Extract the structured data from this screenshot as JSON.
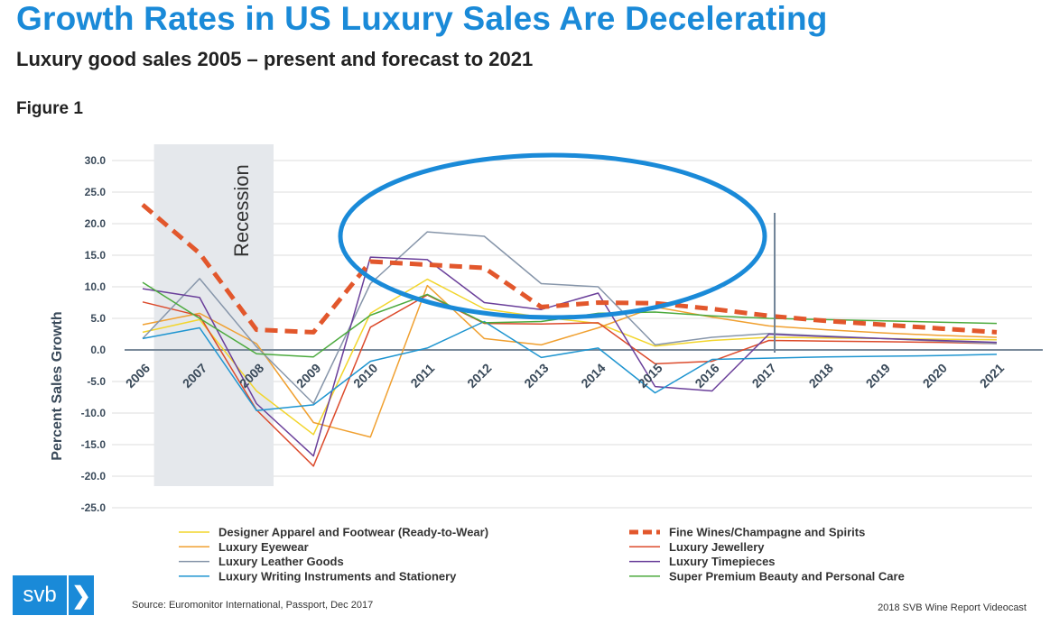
{
  "header": {
    "title": "Growth Rates in US Luxury Sales Are Decelerating",
    "subtitle": "Luxury good sales 2005 – present and forecast to 2021",
    "figure_label": "Figure 1"
  },
  "footer": {
    "logo_text": "svb",
    "logo_icon": "chevron-right-icon",
    "source": "Source: Euromonitor International, Passport, Dec 2017",
    "credit": "2018 SVB Wine Report Videocast"
  },
  "chart_data": {
    "type": "line",
    "title": "Growth Rates in US Luxury Sales Are Decelerating",
    "xlabel": "",
    "ylabel": "Percent Sales Growth",
    "ylim": [
      -25,
      30
    ],
    "yticks": [
      "30.0",
      "25.0",
      "20.0",
      "15.0",
      "10.0",
      "5.0",
      "0.0",
      "-5.0",
      "-10.0",
      "-15.0",
      "-20.0",
      "-25.0"
    ],
    "categories": [
      "2006",
      "2007",
      "2008",
      "2009",
      "2010",
      "2011",
      "2012",
      "2013",
      "2014",
      "2015",
      "2016",
      "2017",
      "2018",
      "2019",
      "2020",
      "2021"
    ],
    "recession": {
      "label": "Recession",
      "from": 2006.2,
      "to": 2008.3
    },
    "forecast_marker": 2017.1,
    "legend_position": "bottom",
    "colors": {
      "accent": "#1a8ad8",
      "grid": "#dcdcdc",
      "recession_shade": "#e5e8ec",
      "highlight_ellipse": "#1a8ad8"
    },
    "series": [
      {
        "name": "Designer Apparel and Footwear (Ready-to-Wear)",
        "color": "#f2d52c",
        "width": 1.5,
        "dash": false,
        "values": [
          2.8,
          4.8,
          -6.5,
          -13.4,
          5.8,
          11.2,
          6.5,
          5.2,
          4.2,
          0.6,
          1.5,
          2.0,
          1.9,
          1.8,
          1.7,
          1.6
        ]
      },
      {
        "name": "Fine Wines/Champagne and Spirits",
        "color": "#e2572c",
        "width": 5,
        "dash": true,
        "values": [
          23.0,
          15.3,
          3.2,
          2.8,
          14.0,
          13.5,
          13.0,
          6.8,
          7.5,
          7.4,
          6.5,
          5.4,
          4.6,
          4.0,
          3.4,
          2.8
        ]
      },
      {
        "name": "Luxury Eyewear",
        "color": "#f0a030",
        "width": 1.5,
        "dash": false,
        "values": [
          4.0,
          5.8,
          1.0,
          -11.5,
          -13.8,
          10.2,
          1.8,
          0.8,
          3.5,
          6.8,
          5.2,
          3.8,
          3.2,
          2.7,
          2.3,
          2.0
        ]
      },
      {
        "name": "Luxury Jewellery",
        "color": "#dc4b2c",
        "width": 1.5,
        "dash": false,
        "values": [
          7.6,
          5.4,
          -9.5,
          -18.4,
          3.6,
          8.7,
          4.2,
          4.1,
          4.3,
          -2.2,
          -1.8,
          1.5,
          1.4,
          1.3,
          1.2,
          1.0
        ]
      },
      {
        "name": "Luxury Leather Goods",
        "color": "#8796aa",
        "width": 1.5,
        "dash": false,
        "values": [
          1.8,
          11.3,
          0.5,
          -8.5,
          10.5,
          18.7,
          18.0,
          10.5,
          10.0,
          0.8,
          2.0,
          2.6,
          2.2,
          1.8,
          1.4,
          1.0
        ]
      },
      {
        "name": "Luxury Timepieces",
        "color": "#6a3f9a",
        "width": 1.5,
        "dash": false,
        "values": [
          9.7,
          8.3,
          -8.5,
          -16.8,
          14.7,
          14.3,
          7.5,
          6.4,
          9.0,
          -5.8,
          -6.5,
          2.5,
          2.1,
          1.8,
          1.5,
          1.2
        ]
      },
      {
        "name": "Luxury Writing Instruments and Stationery",
        "color": "#1f95d0",
        "width": 1.5,
        "dash": false,
        "values": [
          1.8,
          3.5,
          -9.6,
          -8.7,
          -1.8,
          0.3,
          4.5,
          -1.2,
          0.3,
          -6.8,
          -1.5,
          -1.3,
          -1.1,
          -1.0,
          -0.9,
          -0.7
        ]
      },
      {
        "name": "Super Premium Beauty and Personal Care",
        "color": "#4caa3e",
        "width": 1.5,
        "dash": false,
        "values": [
          10.7,
          5.0,
          -0.6,
          -1.1,
          5.5,
          8.8,
          4.3,
          4.5,
          5.8,
          6.0,
          5.4,
          5.0,
          4.8,
          4.6,
          4.4,
          4.2
        ]
      }
    ]
  }
}
